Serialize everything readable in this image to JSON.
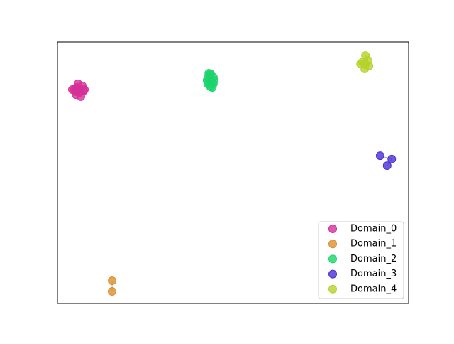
{
  "chart_data": {
    "type": "scatter",
    "xlim": [
      0,
      100
    ],
    "ylim": [
      0,
      100
    ],
    "legend": "lower right",
    "series": [
      {
        "name": "Domain_0",
        "color": "#d62f98",
        "x": [
          4.85,
          5.86,
          7.07,
          7.47,
          6.67,
          5.25,
          4.24,
          5.86,
          6.26,
          5.45,
          7.68,
          5.05
        ],
        "y": [
          81.8,
          84.0,
          83.2,
          81.3,
          79.1,
          79.9,
          81.8,
          81.8,
          80.7,
          82.6,
          81.8,
          81.0
        ]
      },
      {
        "name": "Domain_1",
        "color": "#dc8e2c",
        "x": [
          15.56,
          15.56
        ],
        "y": [
          8.7,
          4.62
        ]
      },
      {
        "name": "Domain_2",
        "color": "#1bd36b",
        "x": [
          43.6,
          42.8,
          44.4,
          42.8,
          44.4,
          43.6,
          43.6,
          42.6,
          44.6,
          43.1,
          44.1
        ],
        "y": [
          85.3,
          86.5,
          86.5,
          84.0,
          84.0,
          87.8,
          82.8,
          85.3,
          85.3,
          88.0,
          82.6
        ]
      },
      {
        "name": "Domain_3",
        "color": "#4a2fd6",
        "x": [
          91.9,
          95.2,
          93.9
        ],
        "y": [
          56.5,
          55.2,
          52.7
        ]
      },
      {
        "name": "Domain_4",
        "color": "#b5d22a",
        "x": [
          87.7,
          88.5,
          86.3,
          87.5,
          88.7,
          86.9,
          87.5
        ],
        "y": [
          94.8,
          92.9,
          91.6,
          89.7,
          90.8,
          92.4,
          91.6
        ]
      }
    ]
  }
}
